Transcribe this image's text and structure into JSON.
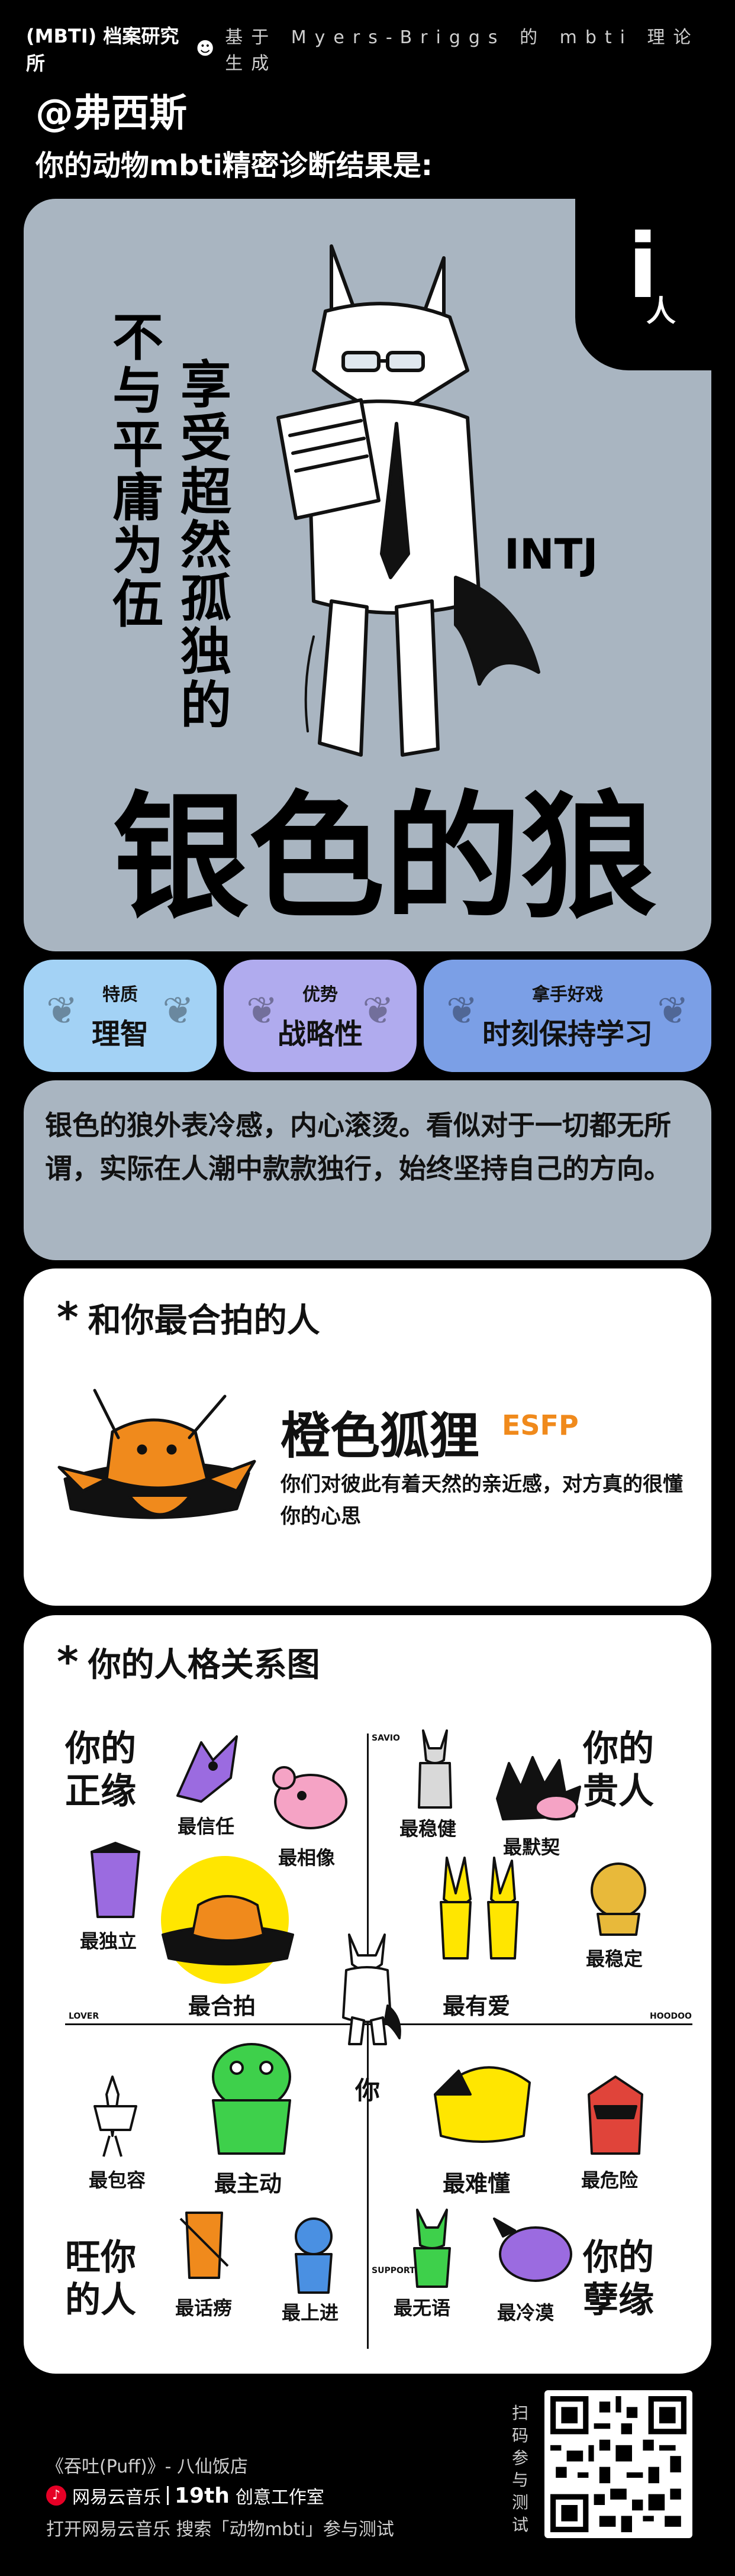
{
  "header": {
    "brand": "(MBTI) 档案研究所",
    "tagline": "基于 Myers-Briggs 的 mbti 理论生成"
  },
  "user": {
    "name": "@弗西斯",
    "result_caption": "你的动物mbti精密诊断结果是:"
  },
  "hero": {
    "i_letter": "i",
    "i_sub": "人",
    "slogan_a": "不与平庸为伍",
    "slogan_b": "享受超然孤独的",
    "type": "INTJ",
    "animal_name": "银色的狼"
  },
  "traits": [
    {
      "label": "特质",
      "value": "理智"
    },
    {
      "label": "优势",
      "value": "战略性"
    },
    {
      "label": "拿手好戏",
      "value": "时刻保持学习"
    }
  ],
  "description": "银色的狼外表冷感，内心滚烫。看似对于一切都无所谓，实际在人潮中款款独行，始终坚持自己的方向。",
  "match": {
    "section_title": "和你最合拍的人",
    "name": "橙色狐狸",
    "type": "ESFP",
    "desc": "你们对彼此有着天然的亲近感，对方真的很懂你的心思"
  },
  "relations": {
    "section_title": "你的人格关系图",
    "quad_labels": {
      "top_left": "你的正缘",
      "top_right": "你的贵人",
      "bottom_left": "旺你的人",
      "bottom_right": "你的孽缘"
    },
    "axis_labels": {
      "top": "SAVIO",
      "left": "LOVER",
      "right": "HOODOO",
      "bottom": "SUPPORTER"
    },
    "center_label": "你",
    "items": {
      "most_trust": "最信任",
      "most_alike": "最相像",
      "most_independent": "最独立",
      "best_match": "最合拍",
      "most_steady": "最稳健",
      "most_tacit": "最默契",
      "most_loving": "最有爱",
      "most_stable": "最稳定",
      "most_tolerant": "最包容",
      "most_proactive": "最主动",
      "hardest_to_understand": "最难懂",
      "most_dangerous": "最危险",
      "most_talkative": "最话痨",
      "most_motivated": "最上进",
      "most_speechless": "最无语",
      "most_cold": "最冷漠"
    }
  },
  "footer": {
    "song": "《吞吐(Puff)》- 八仙饭店",
    "platform": "网易云音乐",
    "studio_num": "19th",
    "studio": "创意工作室",
    "hint": "打开网易云音乐 搜索「动物mbti」参与测试",
    "scan": "扫码参与测试"
  },
  "colors": {
    "hero_bg": "#A9B5C1",
    "trait1": "#A3D2F5",
    "trait2": "#B0ABEE",
    "trait3": "#7B9FE6",
    "accent_orange": "#F08A1C",
    "yellow": "#FFE600",
    "green": "#3ED04B",
    "pink": "#F5A3C5",
    "purple": "#9B6BE0"
  }
}
